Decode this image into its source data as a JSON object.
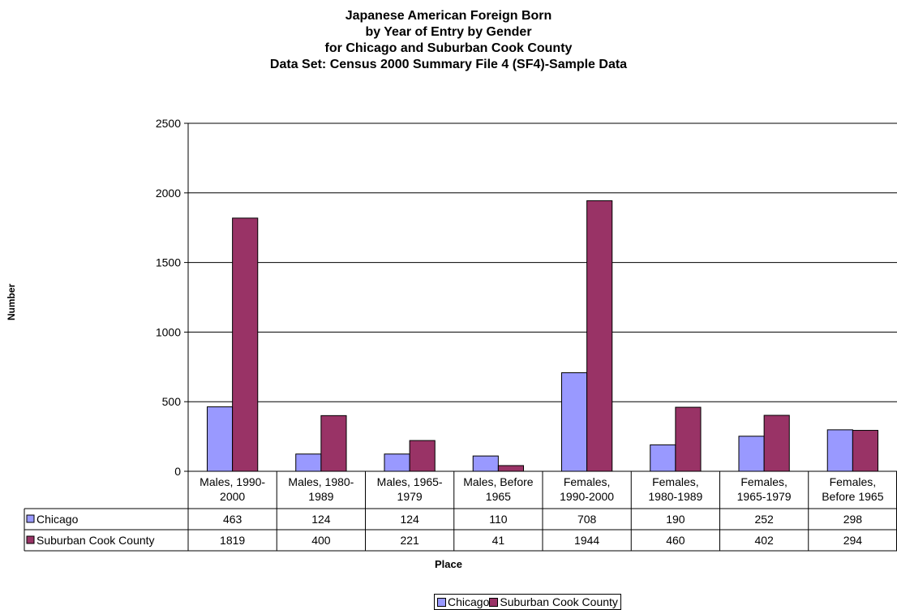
{
  "chart_data": {
    "type": "bar",
    "title": [
      "Japanese American Foreign Born",
      "by Year of Entry by Gender",
      "for Chicago and Suburban Cook County",
      "Data Set: Census 2000 Summary File 4 (SF4)-Sample Data"
    ],
    "xlabel": "Place",
    "ylabel": "Number",
    "ylim": [
      0,
      2500
    ],
    "yticks": [
      "0",
      "500",
      "1000",
      "1500",
      "2000",
      "2500"
    ],
    "categories": [
      [
        "Males, 1990-",
        "2000"
      ],
      [
        "Males, 1980-",
        "1989"
      ],
      [
        "Males, 1965-",
        "1979"
      ],
      [
        "Males, Before",
        "1965"
      ],
      [
        "Females,",
        "1990-2000"
      ],
      [
        "Females,",
        "1980-1989"
      ],
      [
        "Females,",
        "1965-1979"
      ],
      [
        "Females,",
        "Before 1965"
      ]
    ],
    "series": [
      {
        "name": "Chicago",
        "color": "#9999ff",
        "values": [
          463,
          124,
          124,
          110,
          708,
          190,
          252,
          298
        ]
      },
      {
        "name": "Suburban Cook County",
        "color": "#993366",
        "values": [
          1819,
          400,
          221,
          41,
          1944,
          460,
          402,
          294
        ]
      }
    ],
    "grid": true,
    "legend": "bottom",
    "data_table": true
  }
}
